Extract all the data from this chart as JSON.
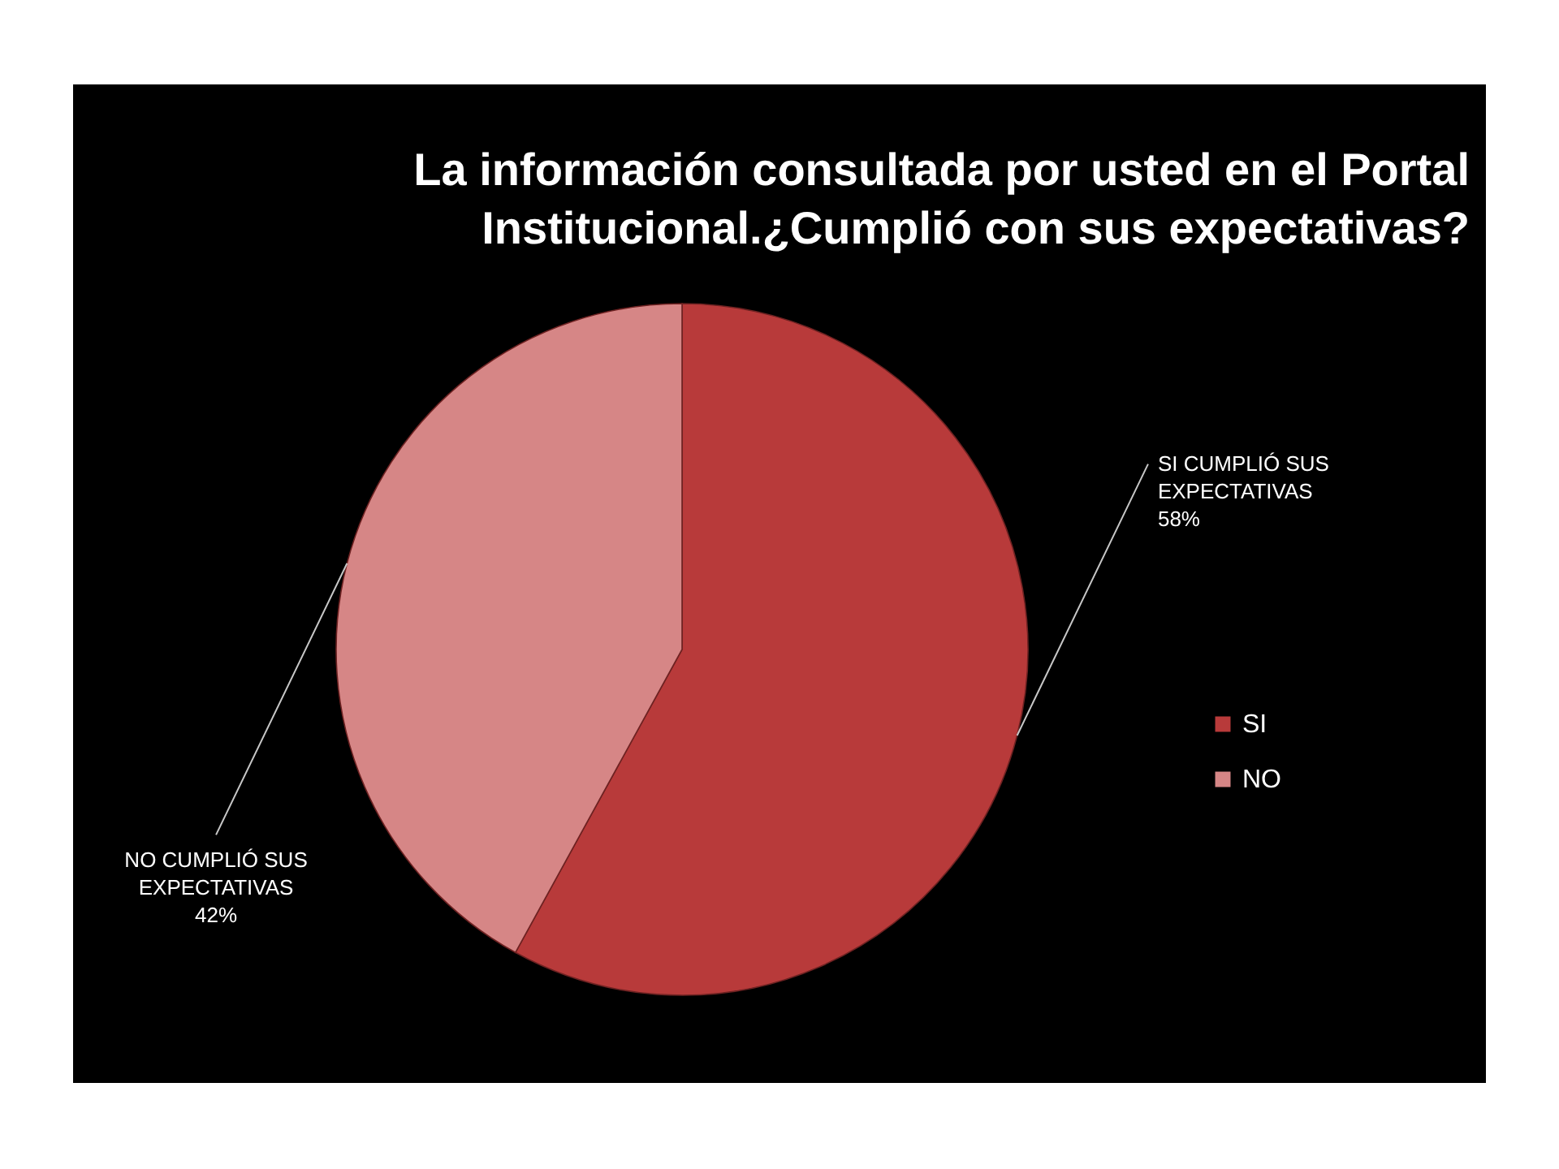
{
  "chart_data": {
    "type": "pie",
    "title": "La información consultada por usted en el Portal Institucional.¿Cumplió con sus expectativas?",
    "categories": [
      "SI",
      "NO"
    ],
    "values": [
      58,
      42
    ],
    "colors": [
      "#b83a3a",
      "#d68686"
    ],
    "value_labels": [
      "SI CUMPLIÓ SUS EXPECTATIVAS 58%",
      "NO CUMPLIÓ SUS EXPECTATIVAS 42%"
    ],
    "legend": "right"
  }
}
